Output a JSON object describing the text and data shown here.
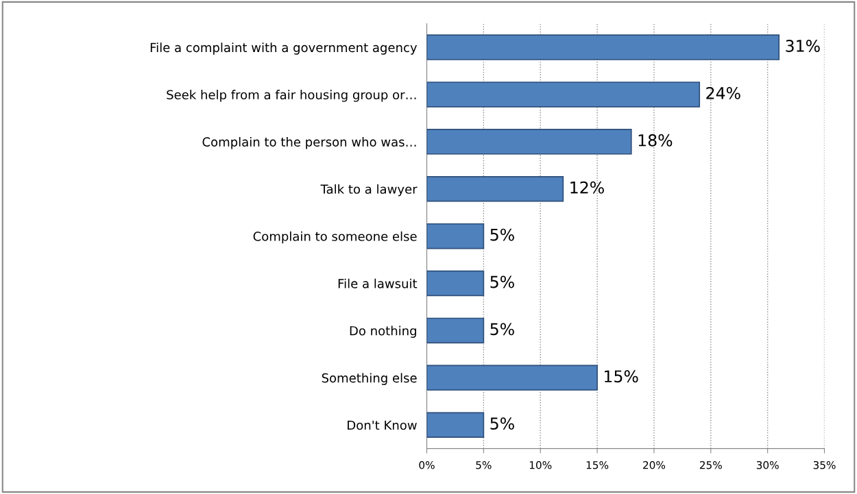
{
  "chart_data": {
    "type": "bar",
    "orientation": "horizontal",
    "categories": [
      "File a complaint with a government agency",
      "Seek help from a fair housing group or…",
      "Complain to the person who was…",
      "Talk to a lawyer",
      "Complain to someone else",
      "File a lawsuit",
      "Do nothing",
      "Something else",
      "Don't Know"
    ],
    "values": [
      31,
      24,
      18,
      12,
      5,
      5,
      5,
      15,
      5
    ],
    "value_labels": [
      "31%",
      "24%",
      "18%",
      "12%",
      "5%",
      "5%",
      "5%",
      "15%",
      "5%"
    ],
    "color": "#4f81bd",
    "xlim": [
      0,
      35
    ],
    "xticks": [
      {
        "value": 0,
        "label": "0%"
      },
      {
        "value": 5,
        "label": "5%"
      },
      {
        "value": 10,
        "label": "10%"
      },
      {
        "value": 15,
        "label": "15%"
      },
      {
        "value": 20,
        "label": "20%"
      },
      {
        "value": 25,
        "label": "25%"
      },
      {
        "value": 30,
        "label": "30%"
      },
      {
        "value": 35,
        "label": "35%"
      }
    ],
    "grid": "x",
    "legend": false
  }
}
